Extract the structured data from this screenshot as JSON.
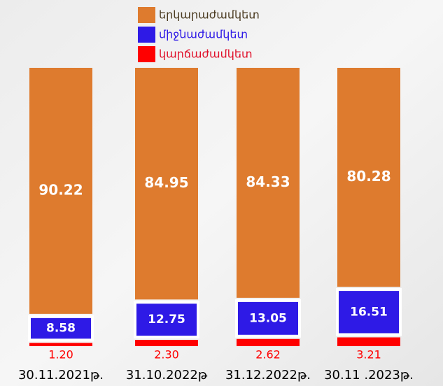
{
  "chart_data": {
    "type": "stacked_bar",
    "categories": [
      "30.11.2021թ.",
      "31.10.2022թ",
      "31.12.2022թ.",
      "30.11 .2023թ."
    ],
    "series": [
      {
        "name": "կարճաժամկետ",
        "color": "#ff0000",
        "values": [
          1.2,
          2.3,
          2.62,
          3.21
        ],
        "value_labels": [
          "1.20",
          "2.30",
          "2.62",
          "3.21"
        ]
      },
      {
        "name": "միջնաժամկետ",
        "color": "#2e1ae6",
        "values": [
          8.58,
          12.75,
          13.05,
          16.51
        ]
      },
      {
        "name": "երկարաժամկետ",
        "color": "#de7b2e",
        "values": [
          90.22,
          84.95,
          84.33,
          80.28
        ]
      }
    ]
  }
}
